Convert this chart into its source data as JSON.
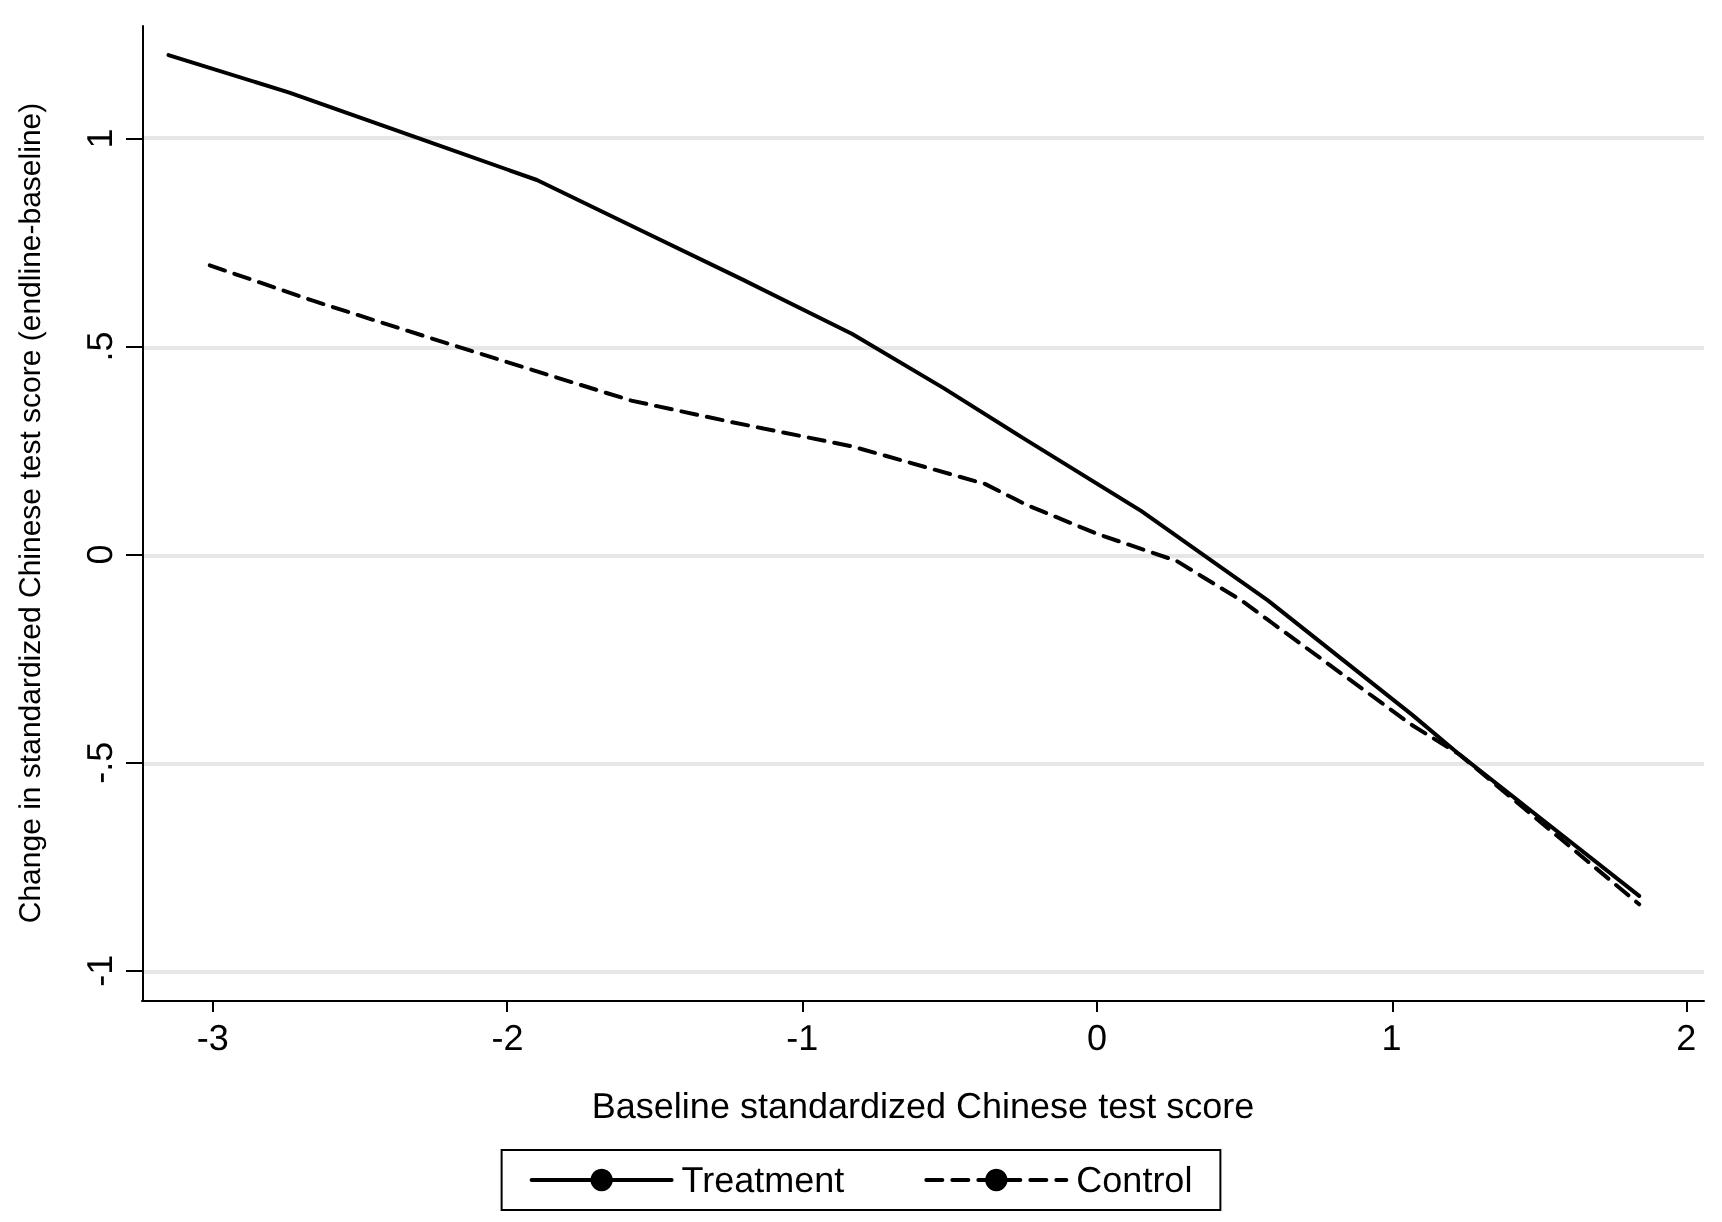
{
  "chart_data": {
    "type": "line",
    "xlabel": "Baseline standardized Chinese test score",
    "ylabel": "Change in standardized Chinese test score (endline-baseline)",
    "xlim": [
      -3.24,
      2.06
    ],
    "xticks": [
      -3,
      -2,
      -1,
      0,
      1,
      2
    ],
    "ylim": [
      -1.07,
      1.27
    ],
    "yticks": [
      {
        "value": -1,
        "label": "-1"
      },
      {
        "value": -0.5,
        "label": "-.5"
      },
      {
        "value": 0,
        "label": "0"
      },
      {
        "value": 0.5,
        "label": ".5"
      },
      {
        "value": 1,
        "label": "1"
      }
    ],
    "grid": "y",
    "legend": "bottom",
    "marker": "none",
    "series": [
      {
        "name": "Treatment",
        "color": "#000000",
        "line_style": "solid",
        "x": [
          -3.15,
          -2.74,
          -2.3,
          -1.9,
          -1.55,
          -1.2,
          -0.83,
          -0.52,
          -0.25,
          0.15,
          0.42,
          0.58,
          1.07,
          1.23,
          1.84
        ],
        "values": [
          1.2,
          1.11,
          1.0,
          0.9,
          0.78,
          0.66,
          0.53,
          0.4,
          0.28,
          0.105,
          -0.03,
          -0.11,
          -0.385,
          -0.48,
          -0.82
        ]
      },
      {
        "name": "Control",
        "color": "#000000",
        "line_style": "dashed",
        "x": [
          -3.01,
          -2.66,
          -2.26,
          -1.99,
          -1.58,
          -1.25,
          -0.83,
          -0.38,
          -0.24,
          0.0,
          0.27,
          0.49,
          1.07,
          1.23,
          1.84
        ],
        "values": [
          0.695,
          0.61,
          0.52,
          0.46,
          0.37,
          0.32,
          0.26,
          0.17,
          0.12,
          0.05,
          -0.015,
          -0.11,
          -0.41,
          -0.48,
          -0.84
        ]
      }
    ]
  }
}
